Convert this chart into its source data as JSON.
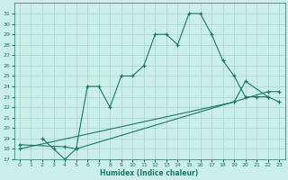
{
  "xlabel": "Humidex (Indice chaleur)",
  "bg_color": "#cceee8",
  "grid_color": "#aad8d0",
  "line_color": "#1a7868",
  "xlim": [
    -0.5,
    23.5
  ],
  "ylim": [
    17,
    32
  ],
  "xticks": [
    0,
    1,
    2,
    3,
    4,
    5,
    6,
    7,
    8,
    9,
    10,
    11,
    12,
    13,
    14,
    15,
    16,
    17,
    18,
    19,
    20,
    21,
    22,
    23
  ],
  "yticks": [
    17,
    18,
    19,
    20,
    21,
    22,
    23,
    24,
    25,
    26,
    27,
    28,
    29,
    30,
    31
  ],
  "line1_x": [
    2,
    3,
    4,
    5,
    6,
    7,
    8,
    9,
    10,
    11,
    12,
    13,
    14,
    15,
    16,
    17,
    18,
    19,
    20,
    21,
    22
  ],
  "line1_y": [
    19.0,
    18.0,
    17.0,
    18.0,
    24.0,
    24.0,
    22.0,
    25.0,
    25.0,
    26.0,
    29.0,
    29.0,
    28.0,
    31.0,
    31.0,
    29.0,
    26.5,
    25.0,
    23.0,
    23.0,
    23.0
  ],
  "line2_x": [
    0,
    4,
    5,
    22,
    23
  ],
  "line2_y": [
    18.4,
    18.2,
    18.0,
    23.5,
    23.5
  ],
  "line3_x": [
    0,
    19,
    20,
    22,
    23
  ],
  "line3_y": [
    18.0,
    22.5,
    24.5,
    23.0,
    22.5
  ]
}
